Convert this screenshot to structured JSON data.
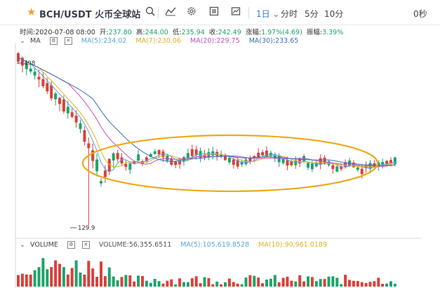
{
  "toolbar": {
    "star_icon": "star-icon",
    "pair": "BCH/USDT",
    "exchange": "火币全球站",
    "tools": [
      "search-icon",
      "indicator-icon",
      "settings-icon",
      "fullscreen-icon",
      "screenshot-icon"
    ],
    "periods": [
      {
        "label": "1日 ⌄",
        "active": true
      },
      {
        "label": "分时",
        "active": false
      },
      {
        "label": "5分",
        "active": false
      },
      {
        "label": "10分",
        "active": false
      }
    ],
    "countdown": "0秒"
  },
  "info": {
    "time_label": "时间:",
    "time": "2020-07-08 08:00",
    "open_label": "开:",
    "open": "237.80",
    "high_label": "高:",
    "high": "244.00",
    "low_label": "低:",
    "low": "235.94",
    "close_label": "收:",
    "close": "242.49",
    "change_label": "涨幅:",
    "change": "1.97%(4.69)",
    "amplitude_label": "振幅:",
    "amplitude": "3.39%"
  },
  "ma": {
    "label": "MA",
    "items": [
      {
        "text": "MA(5):234.02",
        "color": "#5aa5d8"
      },
      {
        "text": "MA(7):230.06",
        "color": "#e0b020"
      },
      {
        "text": "MA(20):229.75",
        "color": "#c050c0"
      },
      {
        "text": "MA(30):233.65",
        "color": "#3a6fb8"
      }
    ]
  },
  "volume": {
    "label": "VOLUME",
    "items": [
      {
        "text": "VOLUME:56,355.6511",
        "color": "#555555"
      },
      {
        "text": "MA(5):105,619.8528",
        "color": "#5aa5d8"
      },
      {
        "text": "MA(10):90,961.0189",
        "color": "#e0b020"
      }
    ]
  },
  "annotations": {
    "high_marker": "498",
    "low_marker": "129.9",
    "ellipse_color": "#f0a818"
  },
  "colors": {
    "up": "#1fa36b",
    "down": "#d9413a"
  }
}
